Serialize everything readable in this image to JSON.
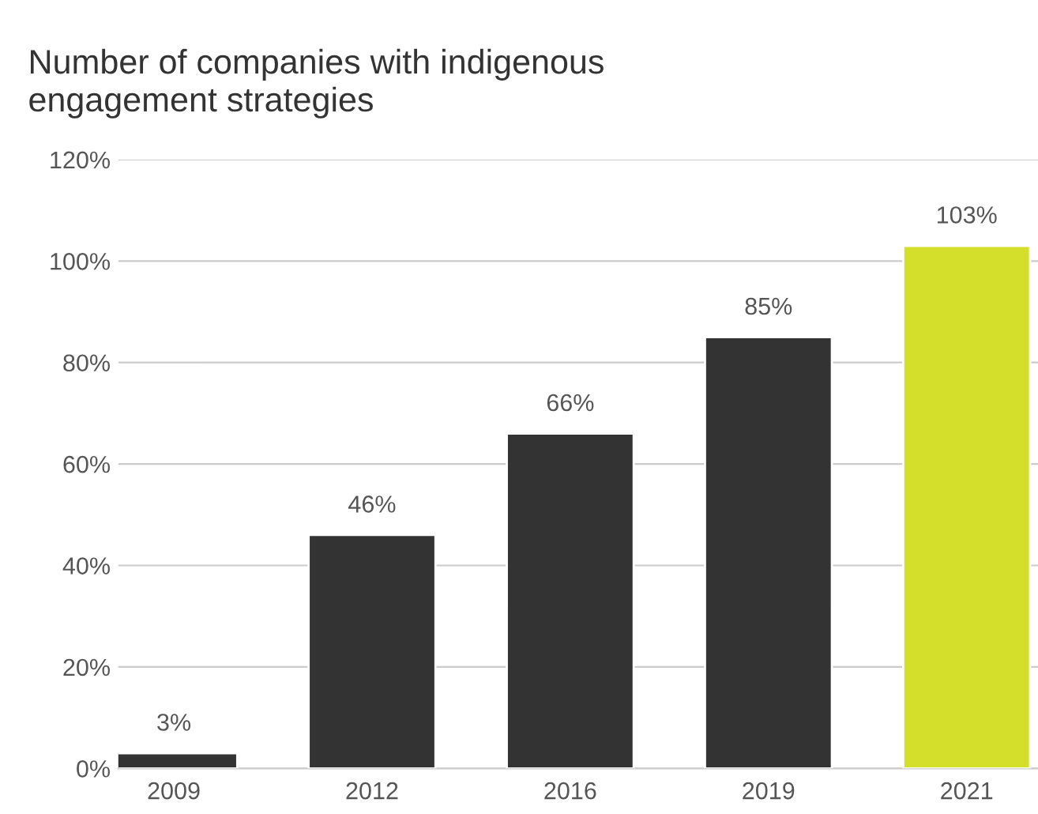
{
  "chart_data": {
    "type": "bar",
    "title": "Number of companies with indigenous\nengagement strategies",
    "categories": [
      "2009",
      "2012",
      "2016",
      "2019",
      "2021"
    ],
    "values": [
      3,
      46,
      66,
      85,
      103
    ],
    "colors": [
      "#333333",
      "#333333",
      "#333333",
      "#333333",
      "#d4df2b"
    ],
    "value_labels": [
      "3%",
      "46%",
      "66%",
      "85%",
      "103%"
    ],
    "ylim": [
      0,
      120
    ],
    "yticks": [
      {
        "value": 0,
        "label": "0%"
      },
      {
        "value": 20,
        "label": "20%"
      },
      {
        "value": 40,
        "label": "40%"
      },
      {
        "value": 60,
        "label": "60%"
      },
      {
        "value": 80,
        "label": "80%"
      },
      {
        "value": 100,
        "label": "100%"
      },
      {
        "value": 120,
        "label": "120%"
      }
    ],
    "grid": "y",
    "legend": false
  }
}
